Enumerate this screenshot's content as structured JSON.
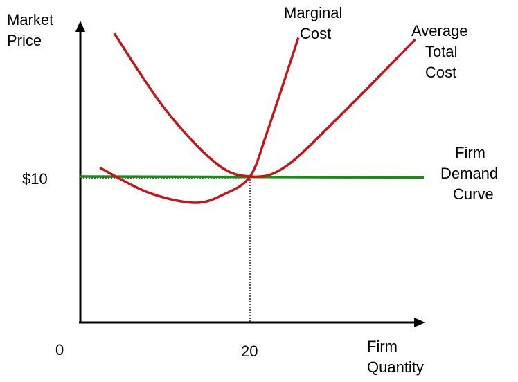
{
  "chart_data": {
    "type": "line",
    "title": "",
    "ylabel": [
      "Market",
      "Price"
    ],
    "xlabel": [
      "Firm",
      "Quantity"
    ],
    "origin_label": "0",
    "x_tick": {
      "value": 20,
      "label": "20"
    },
    "y_tick": {
      "value": 10,
      "label": "$10"
    },
    "series": [
      {
        "name": [
          "Marginal",
          "Cost"
        ],
        "color": "#c0161c",
        "description_points": [
          [
            2.3,
            10.6
          ],
          [
            8,
            8.9
          ],
          [
            13.5,
            8.2
          ],
          [
            17,
            8.8
          ],
          [
            20,
            10
          ],
          [
            22,
            13
          ],
          [
            25.7,
            19.5
          ]
        ]
      },
      {
        "name": [
          "Average",
          "Total",
          "Cost"
        ],
        "color": "#c0161c",
        "description_points": [
          [
            4,
            19.8
          ],
          [
            10,
            14.6
          ],
          [
            16,
            10.9
          ],
          [
            20,
            10
          ],
          [
            24,
            10.6
          ],
          [
            30,
            13.8
          ],
          [
            39.5,
            19.4
          ]
        ]
      },
      {
        "name": [
          "Firm",
          "Demand",
          "Curve"
        ],
        "color": "#1a8a1a",
        "description_points": [
          [
            0,
            10
          ],
          [
            40.5,
            10
          ]
        ]
      }
    ],
    "reference_lines": true
  }
}
